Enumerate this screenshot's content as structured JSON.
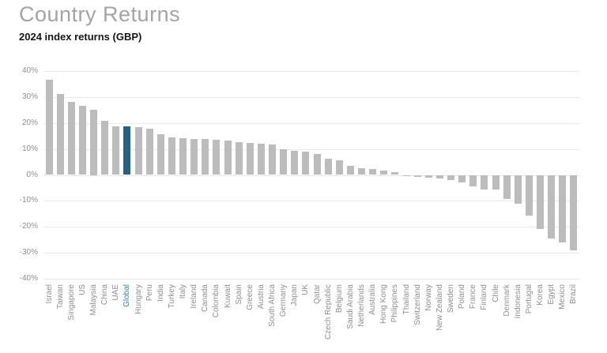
{
  "header": {
    "title": "Country Returns",
    "subtitle": "2024 index returns (GBP)"
  },
  "chart_data": {
    "type": "bar",
    "title": "Country Returns",
    "subtitle": "2024 index returns (GBP)",
    "categories": [
      "Israel",
      "Taiwan",
      "Singapore",
      "US",
      "Malaysia",
      "China",
      "UAE",
      "Global",
      "Hungary",
      "Peru",
      "India",
      "Turkey",
      "Italy",
      "Ireland",
      "Canada",
      "Colombia",
      "Kuwait",
      "Spain",
      "Greece",
      "Austria",
      "South Africa",
      "Germany",
      "Japan",
      "UK",
      "Qatar",
      "Czech Republic",
      "Belgium",
      "Saudi Arabia",
      "Netherlands",
      "Australia",
      "Hong Kong",
      "Philippines",
      "Thailand",
      "Switzerland",
      "Norway",
      "New Zealand",
      "Sweden",
      "Poland",
      "France",
      "Finland",
      "Chile",
      "Denmark",
      "Indonesia",
      "Portugal",
      "Korea",
      "Egypt",
      "Mexico",
      "Brazil"
    ],
    "values": [
      36.8,
      31.3,
      28.2,
      26.5,
      25.0,
      20.8,
      18.7,
      18.6,
      18.3,
      17.9,
      15.6,
      14.6,
      14.0,
      13.9,
      13.8,
      13.4,
      13.3,
      12.6,
      12.2,
      12.0,
      11.6,
      9.8,
      9.4,
      9.0,
      8.0,
      6.1,
      5.7,
      3.4,
      2.6,
      2.2,
      1.6,
      1.2,
      -0.5,
      -0.9,
      -1.1,
      -1.4,
      -2.1,
      -2.9,
      -4.3,
      -5.5,
      -5.7,
      -9.4,
      -11.0,
      -15.8,
      -20.8,
      -24.5,
      -26.0,
      -29.0
    ],
    "highlight_category": "Global",
    "ylim": [
      -40,
      40
    ],
    "ytick_step": 10,
    "ytick_labels": [
      "40%",
      "30%",
      "20%",
      "10%",
      "0%",
      "-10%",
      "-20%",
      "-30%",
      "-40%"
    ],
    "xlabel": "",
    "ylabel": "",
    "grid": true,
    "legend": "none",
    "colors": {
      "bar": "#bcbcbc",
      "highlight_bar": "#2d5f7e",
      "highlight_label": "#3e7fad",
      "axis_label": "#8f8f8f",
      "gridline": "#eaeaea",
      "title": "#a4a4a4",
      "subtitle": "#161616"
    }
  }
}
